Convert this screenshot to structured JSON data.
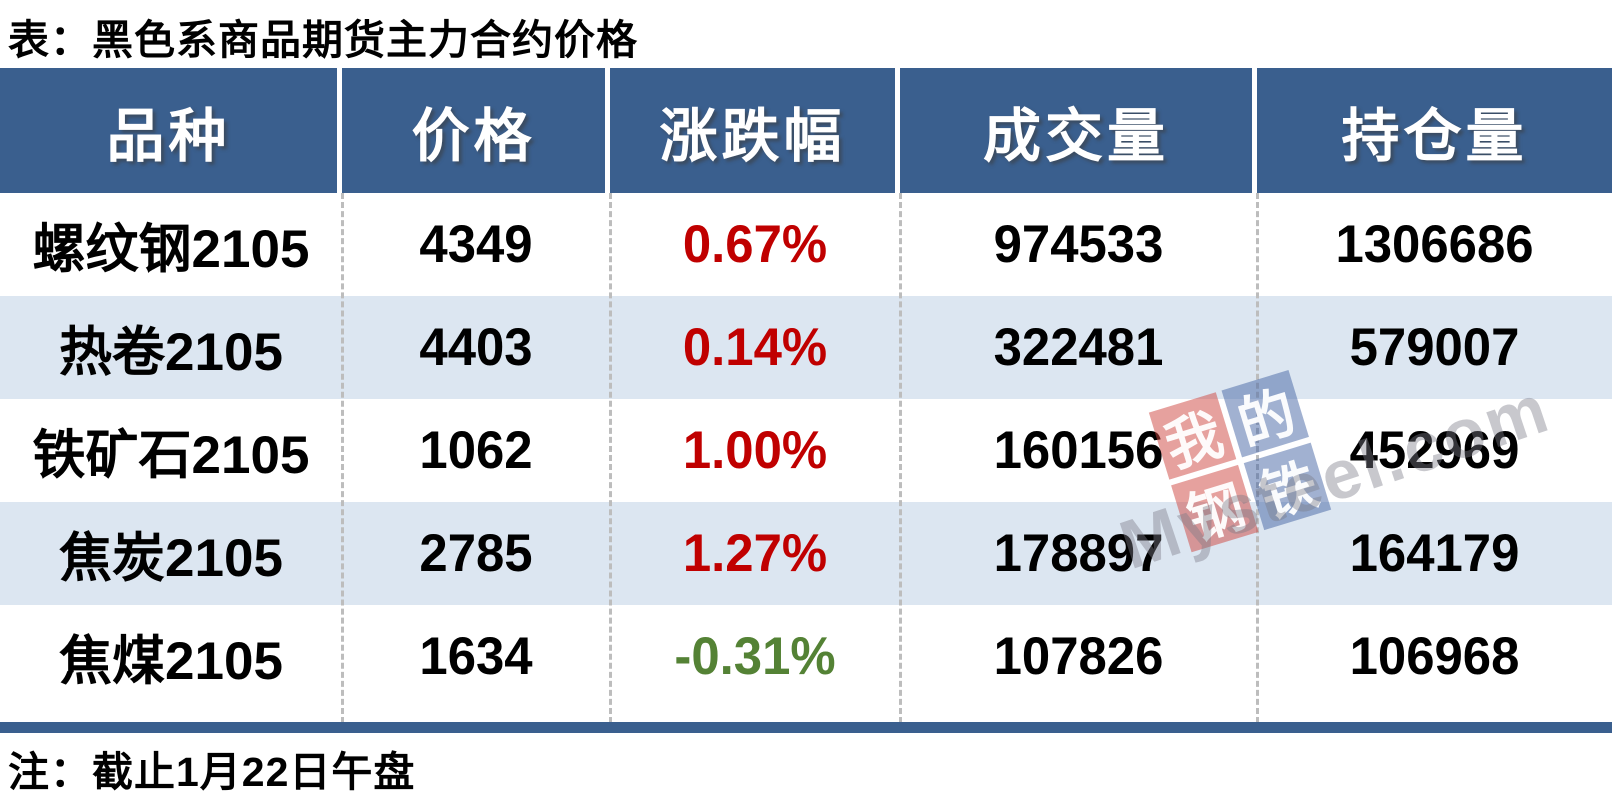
{
  "title": "表：黑色系商品期货主力合约价格",
  "note": "注：截止1月22日午盘",
  "colors": {
    "header_bg": "#3A5F8E",
    "row_alt_bg": "#DCE6F1",
    "up_red": "#C00000",
    "down_green": "#548235",
    "divider_gray": "#BDBDBD"
  },
  "table": {
    "headers": [
      "品种",
      "价格",
      "涨跌幅",
      "成交量",
      "持仓量"
    ],
    "rows": [
      {
        "name": "螺纹钢2105",
        "price": "4349",
        "change": "0.67%",
        "volume": "974533",
        "open_interest": "1306686",
        "direction": "up"
      },
      {
        "name": "热卷2105",
        "price": "4403",
        "change": "0.14%",
        "volume": "322481",
        "open_interest": "579007",
        "direction": "up"
      },
      {
        "name": "铁矿石2105",
        "price": "1062",
        "change": "1.00%",
        "volume": "160156",
        "open_interest": "452969",
        "direction": "up"
      },
      {
        "name": "焦炭2105",
        "price": "2785",
        "change": "1.27%",
        "volume": "178897",
        "open_interest": "164179",
        "direction": "up"
      },
      {
        "name": "焦煤2105",
        "price": "1634",
        "change": "-0.31%",
        "volume": "107826",
        "open_interest": "106968",
        "direction": "down"
      }
    ]
  },
  "watermark": {
    "tiles": [
      "我",
      "的",
      "钢",
      "铁"
    ],
    "site": "Mysteel.com"
  },
  "chart_data": {
    "type": "table",
    "title": "表：黑色系商品期货主力合约价格",
    "columns": [
      "品种",
      "价格",
      "涨跌幅",
      "成交量",
      "持仓量"
    ],
    "rows": [
      [
        "螺纹钢2105",
        4349,
        "0.67%",
        974533,
        1306686
      ],
      [
        "热卷2105",
        4403,
        "0.14%",
        322481,
        579007
      ],
      [
        "铁矿石2105",
        1062,
        "1.00%",
        160156,
        452969
      ],
      [
        "焦炭2105",
        2785,
        "1.27%",
        178897,
        164179
      ],
      [
        "焦煤2105",
        1634,
        "-0.31%",
        107826,
        106968
      ]
    ],
    "change_direction": [
      "up",
      "up",
      "up",
      "up",
      "down"
    ],
    "note": "注：截止1月22日午盘"
  }
}
